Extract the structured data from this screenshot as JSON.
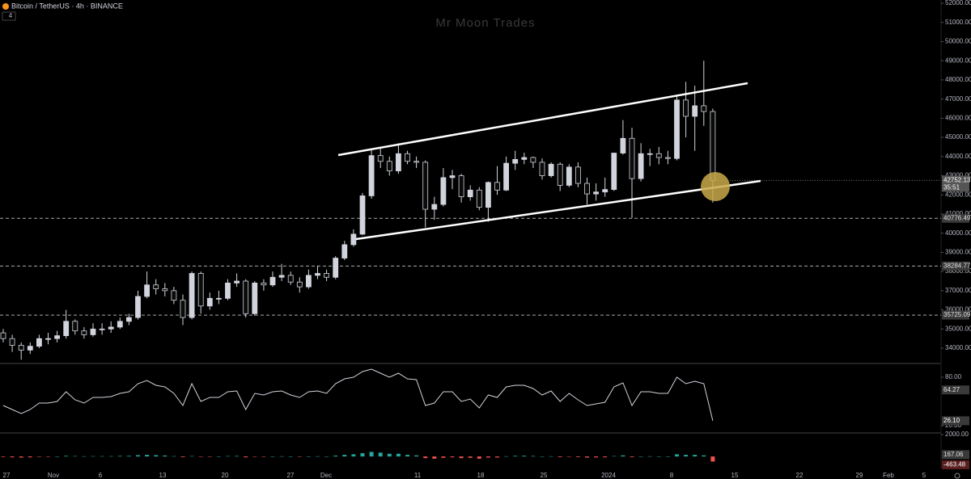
{
  "header": {
    "title": "Bitcoin / TetherUS · 4h · BINANCE",
    "indicator_toggle": "4"
  },
  "watermark": "Mr Moon Trades",
  "chart_data": [
    {
      "type": "candlestick",
      "open": [
        34800,
        34500,
        34150,
        33900,
        34100,
        34500,
        34500,
        34650,
        35400,
        34900,
        34700,
        35000,
        35000,
        35100,
        35400,
        35600,
        36700,
        37300,
        37100,
        37000,
        36500,
        35600,
        37900,
        36200,
        36600,
        36600,
        37400,
        37500,
        35800,
        37400,
        37300,
        37700,
        37800,
        37450,
        37200,
        37800,
        37900,
        37700,
        38700,
        39400,
        39950,
        41950,
        44050,
        43750,
        43250,
        44150,
        43750,
        43700,
        41250,
        41500,
        42900,
        43000,
        41900,
        42250,
        41350,
        42650,
        42250,
        43650,
        43850,
        43950,
        43700,
        43000,
        43600,
        42500,
        43450,
        42600,
        42050,
        42150,
        42280,
        44180,
        44950,
        42850,
        44150,
        44150,
        43950,
        43900,
        46950,
        46100,
        46650,
        46350
      ],
      "high": [
        35000,
        34700,
        34300,
        34300,
        34700,
        34800,
        34900,
        36000,
        35500,
        35100,
        35300,
        35300,
        35400,
        35600,
        35800,
        37000,
        38000,
        37600,
        37400,
        37200,
        36800,
        38000,
        38000,
        36900,
        37000,
        37600,
        37900,
        37600,
        37500,
        37600,
        38000,
        38400,
        38000,
        37700,
        38100,
        38300,
        38100,
        38800,
        39600,
        40200,
        42100,
        44400,
        44500,
        44000,
        44700,
        44300,
        44000,
        43800,
        41900,
        43400,
        43300,
        43100,
        42500,
        42400,
        42700,
        43500,
        44000,
        44300,
        44200,
        44000,
        43900,
        43700,
        43700,
        43600,
        43700,
        42900,
        42600,
        42900,
        44200,
        45900,
        45500,
        44700,
        44400,
        44500,
        44300,
        47200,
        47900,
        47700,
        49000,
        46500
      ],
      "low": [
        34300,
        33800,
        33400,
        33700,
        34000,
        34200,
        34300,
        34500,
        34700,
        34500,
        34600,
        34700,
        34800,
        35000,
        35200,
        35500,
        36600,
        36800,
        36700,
        36300,
        35200,
        35500,
        35800,
        36000,
        36300,
        36500,
        37200,
        35600,
        35700,
        37000,
        37200,
        37500,
        37300,
        36900,
        37100,
        37600,
        37500,
        37600,
        38600,
        39300,
        39900,
        41800,
        43400,
        43000,
        43100,
        43600,
        43400,
        40300,
        40700,
        41400,
        42300,
        41600,
        41700,
        41200,
        40600,
        42000,
        42200,
        43300,
        43600,
        43400,
        42800,
        42900,
        42200,
        42400,
        42400,
        41500,
        41700,
        41900,
        42200,
        44100,
        40800,
        42700,
        43500,
        43600,
        43600,
        43800,
        45000,
        44300,
        45600,
        41600
      ],
      "close": [
        34500,
        34150,
        33900,
        34100,
        34500,
        34500,
        34650,
        35400,
        34900,
        34700,
        35000,
        35000,
        35100,
        35400,
        35600,
        36700,
        37300,
        37100,
        37000,
        36500,
        35600,
        37900,
        36200,
        36600,
        36600,
        37400,
        37500,
        35800,
        37400,
        37300,
        37700,
        37800,
        37450,
        37200,
        37800,
        37900,
        37700,
        38700,
        39400,
        39950,
        41950,
        44050,
        43750,
        43250,
        44150,
        43750,
        43700,
        41250,
        41500,
        42900,
        43000,
        41900,
        42250,
        41350,
        42650,
        42250,
        43650,
        43850,
        43950,
        43700,
        43000,
        43600,
        42500,
        43450,
        42600,
        42050,
        42150,
        42280,
        44180,
        44950,
        42850,
        44150,
        44150,
        43950,
        43900,
        46950,
        46100,
        46650,
        46350,
        42752.13
      ],
      "up_color": "#d1d4dc",
      "down_color": "#0a0a0a",
      "ylim": [
        33200,
        52170
      ],
      "yticks": [
        {
          "value": 34000,
          "label": "34000.00"
        },
        {
          "value": 35000,
          "label": "35000.00"
        },
        {
          "value": 36000,
          "label": "36000.00"
        },
        {
          "value": 37000,
          "label": "37000.00"
        },
        {
          "value": 38000,
          "label": "38000.00"
        },
        {
          "value": 39000,
          "label": "39000.00"
        },
        {
          "value": 40000,
          "label": "40000.00"
        },
        {
          "value": 41000,
          "label": "41000.00"
        },
        {
          "value": 42000,
          "label": "42000.00"
        },
        {
          "value": 43000,
          "label": "43000.00"
        },
        {
          "value": 44000,
          "label": "44000.00"
        },
        {
          "value": 45000,
          "label": "45000.00"
        },
        {
          "value": 46000,
          "label": "46000.00"
        },
        {
          "value": 47000,
          "label": "47000.00"
        },
        {
          "value": 48000,
          "label": "48000.00"
        },
        {
          "value": 49000,
          "label": "49000.00"
        },
        {
          "value": 50000,
          "label": "50000.00"
        },
        {
          "value": 51000,
          "label": "51000.00"
        },
        {
          "value": 52000,
          "label": "52000.00"
        }
      ],
      "levels": [
        40776.49,
        38284.77,
        35725.09
      ],
      "countdown": "35:51",
      "xtick_labels": [
        "27",
        "Nov",
        "6",
        "13",
        "20",
        "27",
        "Dec",
        "11",
        "18",
        "25",
        "2024",
        "8",
        "15",
        "22",
        "29",
        "Feb",
        "5"
      ]
    },
    {
      "type": "line",
      "values": [
        45,
        40,
        35,
        40,
        48,
        48,
        50,
        62,
        52,
        48,
        55,
        55,
        56,
        60,
        62,
        72,
        76,
        70,
        68,
        60,
        45,
        72,
        50,
        55,
        55,
        62,
        63,
        40,
        60,
        58,
        62,
        63,
        58,
        55,
        62,
        63,
        60,
        72,
        78,
        80,
        87,
        90,
        85,
        80,
        85,
        78,
        77,
        45,
        48,
        62,
        62,
        50,
        53,
        42,
        58,
        55,
        68,
        70,
        70,
        66,
        58,
        63,
        50,
        60,
        52,
        45,
        47,
        49,
        68,
        73,
        45,
        62,
        62,
        60,
        60,
        80,
        72,
        75,
        72,
        26.1
      ],
      "last_value_label": "26.10",
      "ma_last": 64.27,
      "color": "#d1d4dc",
      "ylim": [
        11,
        95
      ],
      "yticks": [
        {
          "value": 80,
          "label": "80.00"
        },
        {
          "value": 20,
          "label": "20.00"
        }
      ]
    },
    {
      "type": "bar",
      "values": [
        -50,
        -80,
        -100,
        -80,
        -40,
        -20,
        0,
        60,
        40,
        20,
        30,
        30,
        30,
        50,
        60,
        120,
        150,
        120,
        90,
        30,
        -60,
        40,
        -20,
        -10,
        0,
        40,
        50,
        -80,
        -20,
        -20,
        10,
        20,
        0,
        -20,
        10,
        20,
        10,
        80,
        150,
        200,
        300,
        420,
        350,
        250,
        250,
        150,
        100,
        -150,
        -200,
        -120,
        -80,
        -150,
        -120,
        -200,
        -100,
        -90,
        20,
        60,
        70,
        50,
        0,
        20,
        -60,
        -20,
        -60,
        -100,
        -90,
        -80,
        40,
        100,
        -60,
        0,
        20,
        10,
        10,
        200,
        150,
        150,
        100,
        -463.48
      ],
      "macd_last": 167.06,
      "positive_color": "#26a69a",
      "negative_color": "#ef5350",
      "ylim": [
        -1095,
        2070
      ],
      "yticks": [
        {
          "value": 2000,
          "label": "2000.00"
        }
      ]
    }
  ]
}
